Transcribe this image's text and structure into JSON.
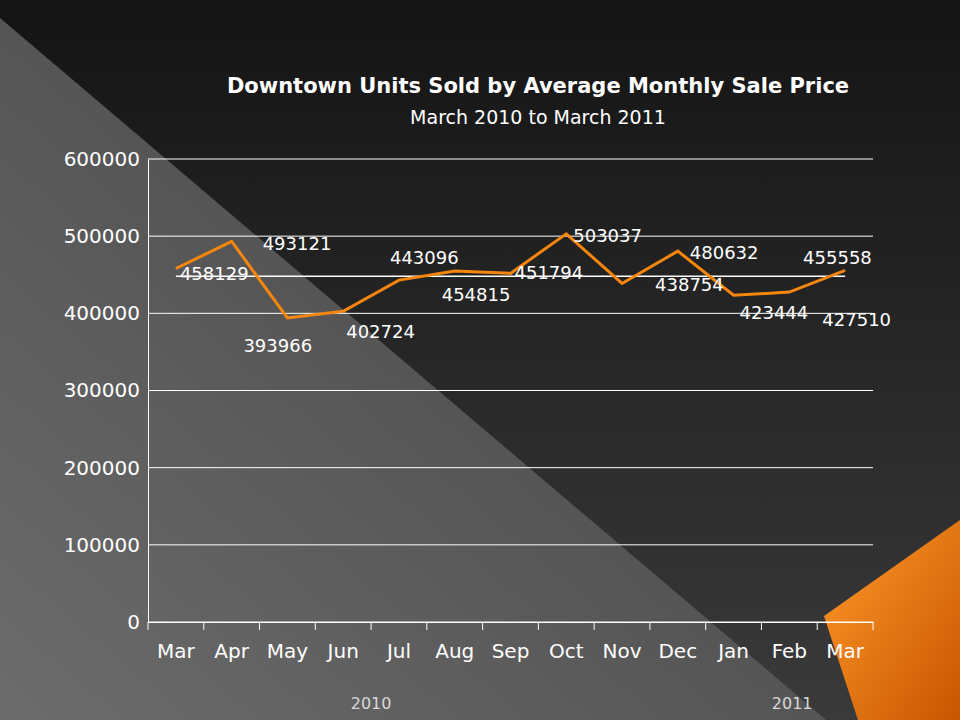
{
  "chart_data": {
    "type": "line",
    "title": "Downtown Units Sold by Average Monthly Sale Price",
    "subtitle": "March 2010 to March 2011",
    "categories": [
      "Mar",
      "Apr",
      "May",
      "Jun",
      "Jul",
      "Aug",
      "Sep",
      "Oct",
      "Nov",
      "Dec",
      "Jan",
      "Feb",
      "Mar"
    ],
    "values": [
      458129,
      493121,
      393966,
      402724,
      443096,
      454815,
      451794,
      503037,
      438754,
      480632,
      423444,
      427510,
      455558
    ],
    "color": "#f7860f",
    "ylim": [
      0,
      600000
    ],
    "yticks": [
      0,
      100000,
      200000,
      300000,
      400000,
      500000,
      600000
    ],
    "grid": true,
    "data_labels": true,
    "annotations": [
      "2010",
      "2011"
    ],
    "average_line": 448198
  }
}
